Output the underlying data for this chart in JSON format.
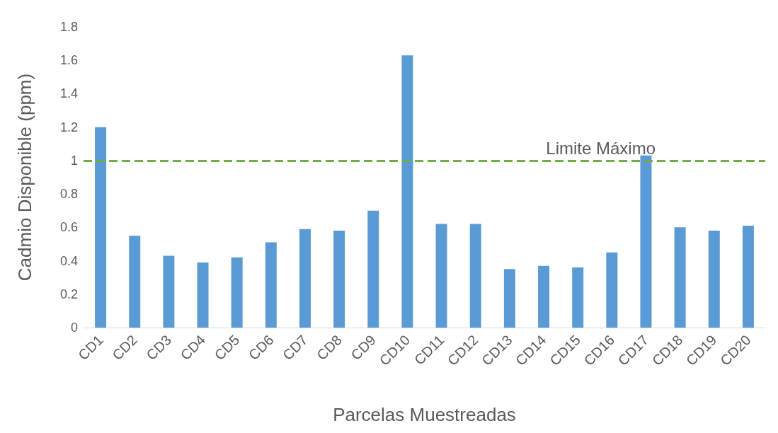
{
  "chart_data": {
    "type": "bar",
    "xlabel": "Parcelas Muestreadas",
    "ylabel": "Cadmio Disponible (ppm)",
    "categories": [
      "CD1",
      "CD2",
      "CD3",
      "CD4",
      "CD5",
      "CD6",
      "CD7",
      "CD8",
      "CD9",
      "CD10",
      "CD11",
      "CD12",
      "CD13",
      "CD14",
      "CD15",
      "CD16",
      "CD17",
      "CD18",
      "CD19",
      "CD20"
    ],
    "values": [
      1.2,
      0.55,
      0.43,
      0.39,
      0.42,
      0.51,
      0.59,
      0.58,
      0.7,
      1.63,
      0.62,
      0.62,
      0.35,
      0.37,
      0.36,
      0.45,
      1.03,
      0.6,
      0.58,
      0.61
    ],
    "color": "#5b9bd5",
    "ylim": [
      0,
      1.8
    ],
    "yticks": [
      0,
      0.2,
      0.4,
      0.6,
      0.8,
      1,
      1.2,
      1.4,
      1.6,
      1.8
    ],
    "grid": false,
    "ref_lines": [
      {
        "axis": "y",
        "value": 1,
        "label": "Limite Máximo",
        "color": "#70ad47",
        "line_style": "dashed"
      }
    ]
  }
}
